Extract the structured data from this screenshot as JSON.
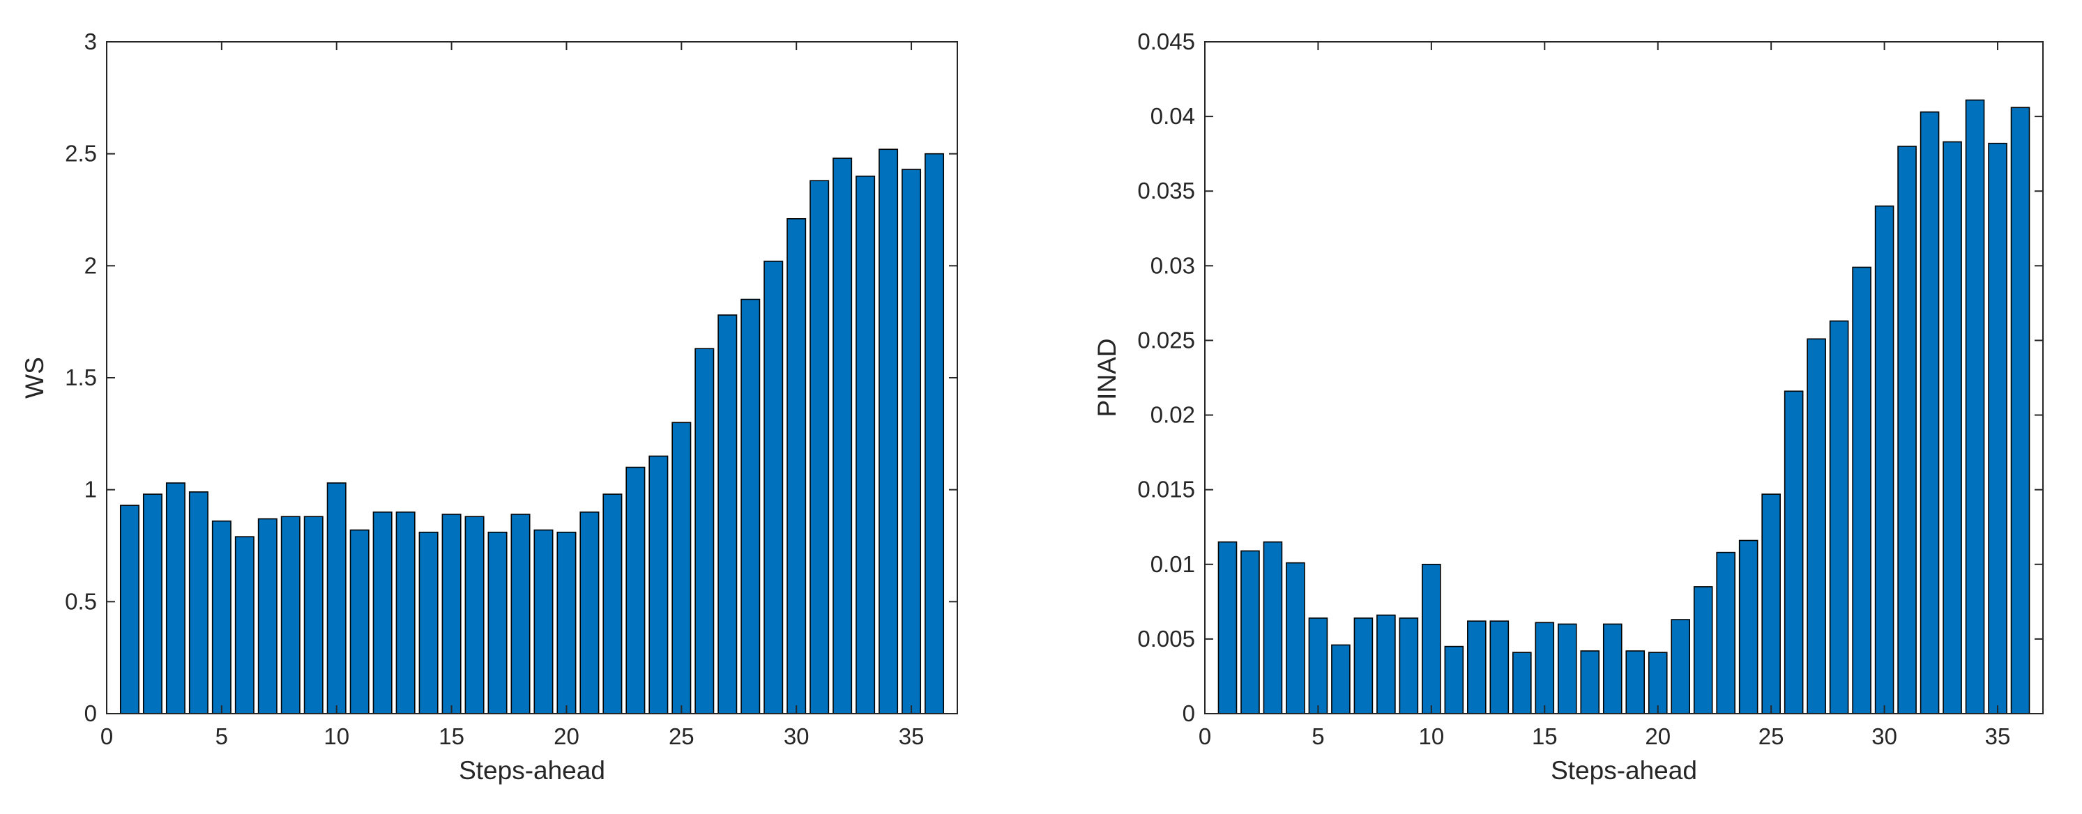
{
  "chart_data": [
    {
      "type": "bar",
      "title": "",
      "xlabel": "Steps-ahead",
      "ylabel": "WS",
      "xlim": [
        0,
        37
      ],
      "ylim": [
        0,
        3
      ],
      "xticks": [
        0,
        5,
        10,
        15,
        20,
        25,
        30,
        35
      ],
      "yticks": [
        0,
        0.5,
        1,
        1.5,
        2,
        2.5,
        3
      ],
      "ytick_labels": [
        "0",
        "0.5",
        "1",
        "1.5",
        "2",
        "2.5",
        "3"
      ],
      "grid": false,
      "bar_color": "#0072BD",
      "categories": [
        1,
        2,
        3,
        4,
        5,
        6,
        7,
        8,
        9,
        10,
        11,
        12,
        13,
        14,
        15,
        16,
        17,
        18,
        19,
        20,
        21,
        22,
        23,
        24,
        25,
        26,
        27,
        28,
        29,
        30,
        31,
        32,
        33,
        34,
        35,
        36
      ],
      "values": [
        0.93,
        0.98,
        1.03,
        0.99,
        0.86,
        0.79,
        0.87,
        0.88,
        0.88,
        1.03,
        0.82,
        0.9,
        0.9,
        0.81,
        0.89,
        0.88,
        0.81,
        0.89,
        0.82,
        0.81,
        0.9,
        0.98,
        1.1,
        1.15,
        1.3,
        1.63,
        1.78,
        1.85,
        2.02,
        2.21,
        2.38,
        2.48,
        2.4,
        2.52,
        2.43,
        2.5
      ]
    },
    {
      "type": "bar",
      "title": "",
      "xlabel": "Steps-ahead",
      "ylabel": "PINAD",
      "xlim": [
        0,
        37
      ],
      "ylim": [
        0,
        0.045
      ],
      "xticks": [
        0,
        5,
        10,
        15,
        20,
        25,
        30,
        35
      ],
      "yticks": [
        0,
        0.005,
        0.01,
        0.015,
        0.02,
        0.025,
        0.03,
        0.035,
        0.04,
        0.045
      ],
      "ytick_labels": [
        "0",
        "0.005",
        "0.01",
        "0.015",
        "0.02",
        "0.025",
        "0.03",
        "0.035",
        "0.04",
        "0.045"
      ],
      "grid": false,
      "bar_color": "#0072BD",
      "categories": [
        1,
        2,
        3,
        4,
        5,
        6,
        7,
        8,
        9,
        10,
        11,
        12,
        13,
        14,
        15,
        16,
        17,
        18,
        19,
        20,
        21,
        22,
        23,
        24,
        25,
        26,
        27,
        28,
        29,
        30,
        31,
        32,
        33,
        34,
        35,
        36
      ],
      "values": [
        0.0115,
        0.0109,
        0.0115,
        0.0101,
        0.0064,
        0.0046,
        0.0064,
        0.0066,
        0.0064,
        0.01,
        0.0045,
        0.0062,
        0.0062,
        0.0041,
        0.0061,
        0.006,
        0.0042,
        0.006,
        0.0042,
        0.0041,
        0.0063,
        0.0085,
        0.0108,
        0.0116,
        0.0147,
        0.0216,
        0.0251,
        0.0263,
        0.0299,
        0.034,
        0.038,
        0.0403,
        0.0383,
        0.0411,
        0.0382,
        0.0406
      ]
    }
  ]
}
